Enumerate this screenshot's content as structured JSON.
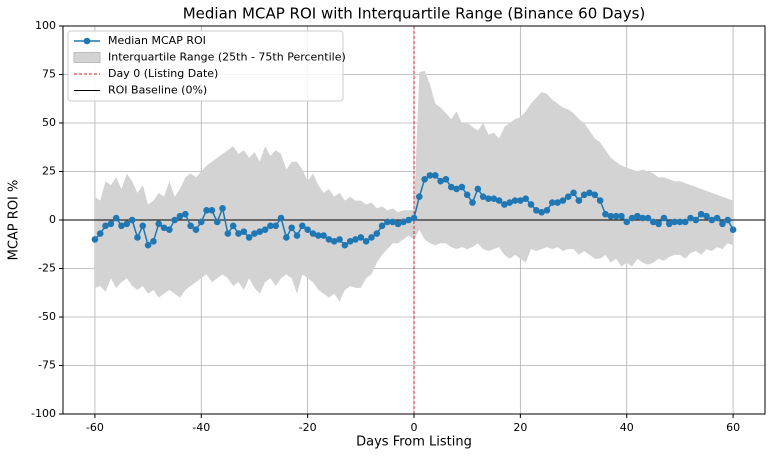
{
  "chart_data": {
    "type": "line",
    "title": "Median MCAP ROI with Interquartile Range (Binance 60 Days)",
    "x_label": "Days From Listing",
    "y_label": "MCAP ROI %",
    "xlim": [
      -66,
      66
    ],
    "ylim": [
      -100,
      100
    ],
    "xticks": [
      -60,
      -40,
      -20,
      0,
      20,
      40,
      60
    ],
    "yticks": [
      -100,
      -75,
      -50,
      -25,
      0,
      25,
      50,
      75,
      100
    ],
    "grid": true,
    "legend": "upper left",
    "x": [
      -60,
      -59,
      -58,
      -57,
      -56,
      -55,
      -54,
      -53,
      -52,
      -51,
      -50,
      -49,
      -48,
      -47,
      -46,
      -45,
      -44,
      -43,
      -42,
      -41,
      -40,
      -39,
      -38,
      -37,
      -36,
      -35,
      -34,
      -33,
      -32,
      -31,
      -30,
      -29,
      -28,
      -27,
      -26,
      -25,
      -24,
      -23,
      -22,
      -21,
      -20,
      -19,
      -18,
      -17,
      -16,
      -15,
      -14,
      -13,
      -12,
      -11,
      -10,
      -9,
      -8,
      -7,
      -6,
      -5,
      -4,
      -3,
      -2,
      -1,
      0,
      1,
      2,
      3,
      4,
      5,
      6,
      7,
      8,
      9,
      10,
      11,
      12,
      13,
      14,
      15,
      16,
      17,
      18,
      19,
      20,
      21,
      22,
      23,
      24,
      25,
      26,
      27,
      28,
      29,
      30,
      31,
      32,
      33,
      34,
      35,
      36,
      37,
      38,
      39,
      40,
      41,
      42,
      43,
      44,
      45,
      46,
      47,
      48,
      49,
      50,
      51,
      52,
      53,
      54,
      55,
      56,
      57,
      58,
      59,
      60
    ],
    "series": [
      {
        "name": "Median MCAP ROI",
        "color": "#1f77b4",
        "values": [
          -10,
          -7,
          -3,
          -2,
          1,
          -3,
          -2,
          0,
          -9,
          -3,
          -13,
          -11,
          -2,
          -4,
          -5,
          0,
          2,
          3,
          -3,
          -5,
          -1,
          5,
          5,
          -1,
          6,
          -7,
          -3,
          -7,
          -6,
          -9,
          -7,
          -6,
          -5,
          -3,
          -3,
          1,
          -9,
          -4,
          -8,
          -3,
          -5,
          -7,
          -8,
          -8,
          -10,
          -11,
          -10,
          -13,
          -11,
          -10,
          -9,
          -11,
          -9,
          -7,
          -3,
          -1,
          -1,
          -2,
          -1,
          0,
          1,
          12,
          21,
          23,
          23,
          20,
          21,
          17,
          16,
          17,
          13,
          9,
          16,
          12,
          11,
          11,
          10,
          8,
          9,
          10,
          10,
          11,
          8,
          5,
          4,
          5,
          9,
          9,
          10,
          12,
          14,
          10,
          13,
          14,
          13,
          10,
          3,
          2,
          2,
          2,
          -1,
          1,
          2,
          1,
          1,
          -1,
          -2,
          1,
          -2,
          -1,
          -1,
          -1,
          1,
          0,
          3,
          2,
          0,
          1,
          -2,
          0,
          -5
        ]
      }
    ],
    "band": {
      "name": "Interquartile Range (25th - 75th Percentile)",
      "color": "#d3d3d3",
      "upper": [
        12,
        10,
        20,
        18,
        22,
        16,
        24,
        20,
        14,
        18,
        8,
        10,
        14,
        12,
        20,
        12,
        16,
        22,
        24,
        22,
        25,
        28,
        30,
        32,
        34,
        36,
        38,
        34,
        36,
        32,
        35,
        30,
        38,
        33,
        36,
        34,
        26,
        30,
        30,
        26,
        20,
        24,
        18,
        14,
        16,
        12,
        14,
        10,
        12,
        10,
        10,
        8,
        9,
        6,
        7,
        5,
        6,
        4,
        5,
        5,
        5,
        76,
        77,
        70,
        60,
        58,
        55,
        52,
        56,
        50,
        50,
        48,
        46,
        50,
        44,
        45,
        42,
        48,
        50,
        52,
        53,
        56,
        60,
        63,
        66,
        65,
        62,
        60,
        58,
        57,
        55,
        52,
        50,
        46,
        42,
        40,
        36,
        32,
        30,
        28,
        27,
        26,
        25,
        26,
        25,
        24,
        22,
        22,
        21,
        20,
        20,
        19,
        18,
        17,
        16,
        15,
        14,
        13,
        12,
        11,
        10
      ],
      "lower": [
        -35,
        -34,
        -37,
        -30,
        -35,
        -32,
        -30,
        -34,
        -36,
        -34,
        -38,
        -36,
        -40,
        -38,
        -36,
        -38,
        -40,
        -36,
        -34,
        -32,
        -30,
        -28,
        -32,
        -30,
        -28,
        -30,
        -34,
        -32,
        -36,
        -30,
        -35,
        -38,
        -32,
        -30,
        -34,
        -30,
        -28,
        -30,
        -38,
        -28,
        -30,
        -32,
        -36,
        -38,
        -40,
        -38,
        -42,
        -36,
        -34,
        -35,
        -35,
        -30,
        -28,
        -22,
        -18,
        -15,
        -12,
        -12,
        -10,
        -8,
        -10,
        -5,
        -10,
        -12,
        -13,
        -12,
        -12,
        -14,
        -15,
        -14,
        -15,
        -14,
        -12,
        -15,
        -16,
        -15,
        -14,
        -18,
        -20,
        -18,
        -20,
        -22,
        -15,
        -16,
        -15,
        -14,
        -15,
        -14,
        -16,
        -15,
        -15,
        -18,
        -16,
        -18,
        -20,
        -20,
        -18,
        -22,
        -20,
        -24,
        -22,
        -24,
        -20,
        -22,
        -23,
        -22,
        -20,
        -21,
        -19,
        -18,
        -18,
        -20,
        -17,
        -16,
        -18,
        -15,
        -16,
        -14,
        -15,
        -12,
        -13
      ]
    },
    "vline": {
      "name": "Day 0 (Listing Date)",
      "x": 0,
      "color": "#d62728"
    },
    "hline": {
      "name": "ROI Baseline (0%)",
      "y": 0,
      "color": "#000000"
    }
  }
}
